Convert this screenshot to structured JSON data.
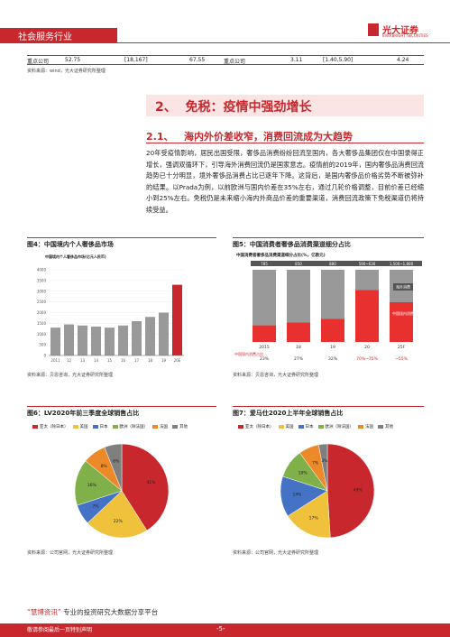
{
  "header": {
    "industry": "社会服务行业",
    "brand": "光大证券",
    "brand_en": "EVERBRIGHT SECURITIES"
  },
  "table_row": {
    "c1": "重点公司",
    "c2": "52.75",
    "c3": "[18,167]",
    "c4": "67.55",
    "c5": "重点公司",
    "c6": "3.11",
    "c7": "[1.40,5.90]",
    "c8": "4.24"
  },
  "table_source": "资料来源：wind，光大证券研究所整理",
  "section": {
    "num": "2、",
    "title": "免税：疫情中强劲增长"
  },
  "subsection": {
    "num": "2.1、",
    "title": "海内外价差收窄，消费回流成为大趋势"
  },
  "paragraph": "20年受疫情影响，居民出国受限，奢侈品消费纷纷回流至国内，各大奢侈品集团仅在中国录得正增长，强调双循环下，引导海外消费回流仍是国家意志。疫情前的2019年，国内奢侈品消费回流趋势已十分明显，境外奢侈品消费占比已逐年下降。这背后，是国内奢侈品价格劣势不断被弥补的结果。以Prada为例，以前欧洲与国内价差在35%左右，通过几轮价格调整，目前价差已经缩小到25%左右。免税仍是未来缩小海内外商品价差的重要渠道，消费回流政策下免税渠道仍将持续受益。",
  "fig4": {
    "caption": "图4：中国境内个人奢侈品市场",
    "source": "资料来源：贝恩咨询，光大证券研究所整理",
    "inner_title": "中国境内个人奢侈品市场(亿元人民币)",
    "chart_data": {
      "type": "bar",
      "categories": [
        "2011",
        "12",
        "13",
        "14",
        "15",
        "16",
        "17",
        "18",
        "19",
        "20E"
      ],
      "values": [
        1300,
        1450,
        1400,
        1350,
        1300,
        1400,
        1600,
        1800,
        2000,
        3300
      ],
      "ylim": [
        0,
        4000
      ],
      "yticks": [
        "0",
        "500",
        "1000",
        "1500",
        "2000",
        "2500",
        "3000",
        "3500",
        "4000"
      ]
    }
  },
  "fig5": {
    "caption": "图5：中国消费者奢侈品消费渠道细分占比",
    "source": "资料来源：贝恩咨询，光大证券研究所整理",
    "inner_title": "中国消费者奢侈品消费渠道细分占比(%，亿欧元)",
    "totals": [
      "785",
      "850",
      "880",
      "590~630",
      "1,500~1,800"
    ],
    "categories": [
      "2015",
      "18",
      "19",
      "20",
      "25F"
    ],
    "domestic_share_label": "中国境内消费占比",
    "domestic_share": [
      "23%",
      "27%",
      "32%",
      "70%~75%",
      "~55%"
    ],
    "legend": [
      "海外消费",
      "中国境内消费"
    ],
    "chart_data": {
      "type": "bar",
      "categories": [
        "2015",
        "18",
        "19",
        "20",
        "25F"
      ],
      "series": [
        {
          "name": "中国境内消费",
          "values": [
            23,
            27,
            32,
            72,
            55
          ]
        },
        {
          "name": "海外消费",
          "values": [
            77,
            73,
            68,
            28,
            45
          ]
        }
      ]
    }
  },
  "fig6": {
    "caption": "图6：LV2020年前三季度全球销售占比",
    "source": "资料来源：公司官网，光大证券研究所整理",
    "legend": [
      "亚太（除日本）",
      "美国",
      "日本",
      "欧洲（除法国）",
      "法国",
      "其他"
    ],
    "chart_data": {
      "type": "pie",
      "labels": [
        "亚太（除日本）",
        "美国",
        "日本",
        "欧洲（除法国）",
        "法国",
        "其他"
      ],
      "values": [
        41,
        22,
        7,
        16,
        8,
        6
      ],
      "colors": [
        "#c8282d",
        "#f0c23c",
        "#4472c4",
        "#7fb04a",
        "#ec8a2a",
        "#7f7f7f"
      ]
    }
  },
  "fig7": {
    "caption": "图7：爱马仕2020上半年全球销售占比",
    "source": "资料来源：公司官网，光大证券研究所整理",
    "legend": [
      "亚太（除日本）",
      "美国",
      "日本",
      "欧洲（除法国）",
      "法国",
      "其他"
    ],
    "chart_data": {
      "type": "pie",
      "labels": [
        "亚太（除日本）",
        "美国",
        "日本",
        "欧洲（除法国）",
        "法国",
        "其他"
      ],
      "values": [
        49,
        17,
        14,
        10,
        7,
        3
      ],
      "colors": [
        "#c8282d",
        "#f0c23c",
        "#4472c4",
        "#7fb04a",
        "#ec8a2a",
        "#7f7f7f"
      ]
    }
  },
  "footer": {
    "note_prefix": "“慧博资讯”",
    "note": "专业的投资研究大数据分享平台",
    "page": "-5-",
    "left": "敬请参阅最后一页特别声明"
  }
}
